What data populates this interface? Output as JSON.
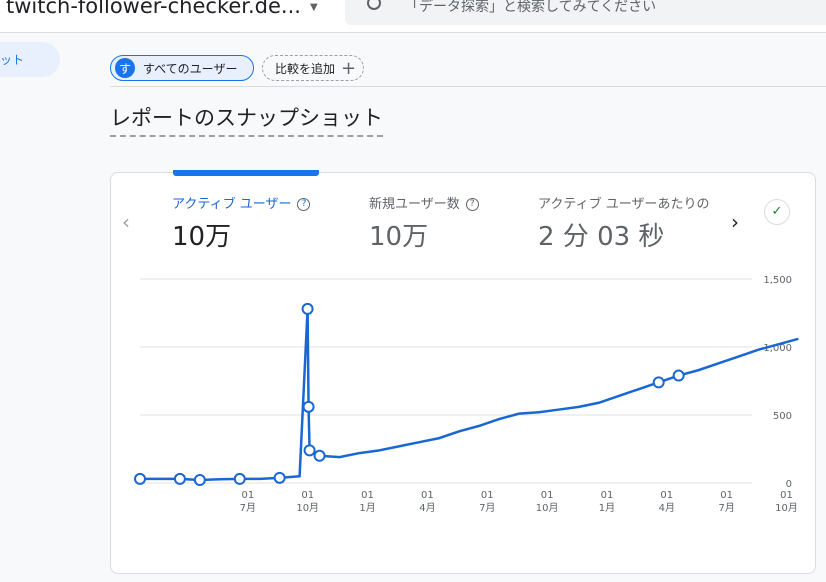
{
  "header": {
    "property": "twitch-follower-checker.de...",
    "search_placeholder": "「データ探索」と検索してみてください"
  },
  "sidebar": {
    "active_item": "ット"
  },
  "chips": {
    "segment": "すべてのユーザー",
    "segment_avatar": "す",
    "add_comparison": "比較を追加"
  },
  "page_title": "レポートのスナップショット",
  "metrics": [
    {
      "label": "アクティブ ユーザー",
      "value": "10万",
      "help": "?"
    },
    {
      "label": "新規ユーザー数",
      "value": "10万",
      "help": "?"
    },
    {
      "label": "アクティブ ユーザーあたりの",
      "value": "2 分 03 秒"
    }
  ],
  "colors": {
    "accent": "#1a73e8",
    "line": "#1967d2"
  },
  "chart_data": {
    "type": "line",
    "y_ticks": [
      "1,500",
      "1,000",
      "500",
      "0"
    ],
    "ylim": [
      0,
      1500
    ],
    "x_ticks": [
      {
        "day": "01",
        "month": "7月"
      },
      {
        "day": "01",
        "month": "10月"
      },
      {
        "day": "01",
        "month": "1月"
      },
      {
        "day": "01",
        "month": "4月"
      },
      {
        "day": "01",
        "month": "7月"
      },
      {
        "day": "01",
        "month": "10月"
      },
      {
        "day": "01",
        "month": "1月"
      },
      {
        "day": "01",
        "month": "4月"
      },
      {
        "day": "01",
        "month": "7月"
      },
      {
        "day": "01",
        "month": "10月"
      }
    ],
    "grid": true,
    "series": [
      {
        "values": [
          30,
          30,
          30,
          22,
          28,
          30,
          30,
          38,
          50,
          1280,
          560,
          240,
          200,
          190,
          220,
          240,
          270,
          300,
          330,
          380,
          420,
          470,
          510,
          520,
          540,
          560,
          590,
          640,
          690,
          740,
          790,
          830,
          880,
          930,
          980,
          1020,
          1060
        ],
        "anomalies": [
          0,
          2,
          3,
          5,
          7,
          9,
          10,
          11,
          12,
          29,
          30
        ]
      }
    ]
  }
}
